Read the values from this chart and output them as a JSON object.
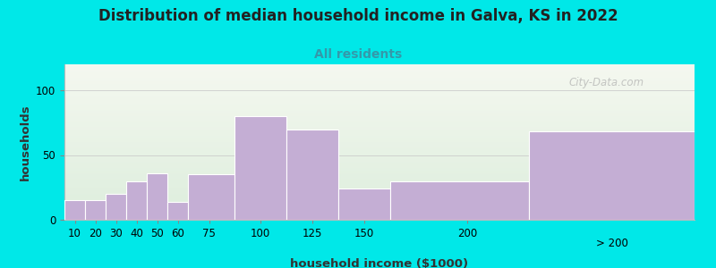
{
  "title": "Distribution of median household income in Galva, KS in 2022",
  "subtitle": "All residents",
  "xlabel": "household income ($1000)",
  "ylabel": "households",
  "background_outer": "#00e8e8",
  "bar_color": "#c4aed4",
  "bar_edge_color": "#ffffff",
  "categories": [
    "10",
    "20",
    "30",
    "40",
    "50",
    "60",
    "75",
    "100",
    "125",
    "150",
    "200",
    "> 200"
  ],
  "values": [
    15,
    15,
    20,
    30,
    36,
    14,
    35,
    80,
    70,
    24,
    30,
    68
  ],
  "bar_lefts": [
    5,
    15,
    25,
    35,
    45,
    55,
    65,
    87.5,
    112.5,
    137.5,
    162.5,
    230
  ],
  "bar_widths": [
    10,
    10,
    10,
    10,
    10,
    10,
    22.5,
    25,
    25,
    25,
    67.5,
    80
  ],
  "tick_positions": [
    10,
    20,
    30,
    40,
    50,
    60,
    75,
    100,
    125,
    150,
    200
  ],
  "xlim_left": 5,
  "xlim_right": 310,
  "ylim": [
    0,
    120
  ],
  "yticks": [
    0,
    50,
    100
  ],
  "title_fontsize": 12,
  "subtitle_fontsize": 10,
  "axis_label_fontsize": 9.5,
  "tick_fontsize": 8.5,
  "title_color": "#222222",
  "subtitle_color": "#3399aa",
  "watermark": "City-Data.com",
  "grad_top": "#f5f8f0",
  "grad_bottom": "#ddeedd"
}
